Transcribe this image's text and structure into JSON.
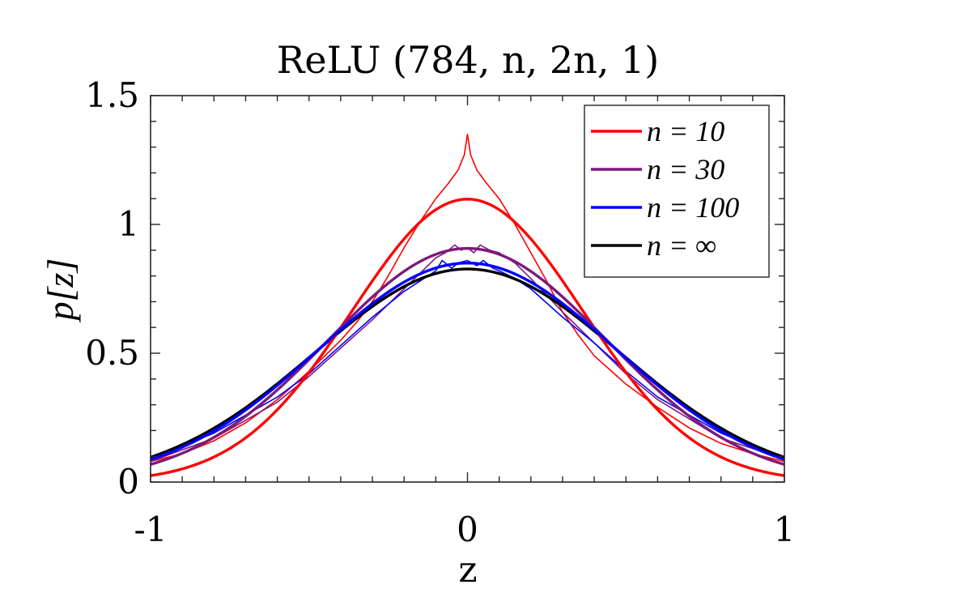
{
  "chart_data": {
    "type": "line",
    "title": "ReLU (784, n, 2n, 1)",
    "xlabel": "z",
    "ylabel": "p[z]",
    "xlim": [
      -1,
      1
    ],
    "ylim": [
      0,
      1.5
    ],
    "xticks": [
      -1,
      0,
      1
    ],
    "xtick_labels": [
      "-1",
      "0",
      "1"
    ],
    "yticks": [
      0,
      0.5,
      1,
      1.5
    ],
    "ytick_labels": [
      "0",
      "0.5",
      "1",
      "1.5"
    ],
    "minor_tick_step_x": 0.1,
    "minor_tick_step_y": 0.1,
    "grid": false,
    "legend_position": "top-right",
    "series": [
      {
        "name": "n = 10",
        "legend_label": "n = 10",
        "color": "#ff0000",
        "kind": "theory",
        "peak": 1.098
      },
      {
        "name": "n = 30",
        "legend_label": "n = 30",
        "color": "#7b1a7b",
        "kind": "theory",
        "peak": 0.907
      },
      {
        "name": "n = 100",
        "legend_label": "n = 100",
        "color": "#0000ff",
        "kind": "theory",
        "peak": 0.85
      },
      {
        "name": "n = ∞",
        "legend_label": "n = ∞",
        "color": "#000000",
        "kind": "theory",
        "peak": 0.827
      }
    ],
    "empirical_series": [
      {
        "name": "n = 10 (empirical)",
        "color": "#ff0000",
        "x": [
          -1.0,
          -0.9,
          -0.8,
          -0.7,
          -0.6,
          -0.5,
          -0.4,
          -0.35,
          -0.3,
          -0.25,
          -0.2,
          -0.15,
          -0.1,
          -0.06,
          -0.03,
          -0.01,
          0.0,
          0.01,
          0.03,
          0.06,
          0.1,
          0.15,
          0.2,
          0.25,
          0.3,
          0.35,
          0.4,
          0.5,
          0.6,
          0.7,
          0.8,
          0.9,
          1.0
        ],
        "y": [
          0.08,
          0.11,
          0.16,
          0.23,
          0.32,
          0.43,
          0.55,
          0.62,
          0.7,
          0.8,
          0.91,
          1.01,
          1.1,
          1.16,
          1.21,
          1.27,
          1.35,
          1.27,
          1.21,
          1.16,
          1.1,
          1.0,
          0.89,
          0.78,
          0.66,
          0.57,
          0.49,
          0.38,
          0.29,
          0.21,
          0.15,
          0.11,
          0.08
        ]
      },
      {
        "name": "n = 30 (empirical)",
        "color": "#7b1a7b",
        "x": [
          -1.0,
          -0.8,
          -0.6,
          -0.5,
          -0.4,
          -0.3,
          -0.2,
          -0.15,
          -0.1,
          -0.07,
          -0.04,
          -0.02,
          0.0,
          0.02,
          0.04,
          0.07,
          0.1,
          0.15,
          0.2,
          0.3,
          0.4,
          0.5,
          0.6,
          0.8,
          1.0
        ],
        "y": [
          0.08,
          0.17,
          0.31,
          0.41,
          0.52,
          0.63,
          0.75,
          0.81,
          0.87,
          0.89,
          0.92,
          0.9,
          0.91,
          0.89,
          0.92,
          0.9,
          0.89,
          0.85,
          0.79,
          0.66,
          0.54,
          0.42,
          0.32,
          0.17,
          0.09
        ]
      },
      {
        "name": "n = 100 (empirical)",
        "color": "#0000ff",
        "x": [
          -1.0,
          -0.8,
          -0.6,
          -0.5,
          -0.4,
          -0.3,
          -0.2,
          -0.15,
          -0.1,
          -0.08,
          -0.05,
          -0.03,
          0.0,
          0.03,
          0.05,
          0.08,
          0.1,
          0.15,
          0.2,
          0.3,
          0.4,
          0.5,
          0.6,
          0.8,
          1.0
        ],
        "y": [
          0.09,
          0.19,
          0.33,
          0.42,
          0.53,
          0.64,
          0.74,
          0.78,
          0.82,
          0.86,
          0.83,
          0.85,
          0.86,
          0.84,
          0.86,
          0.83,
          0.82,
          0.79,
          0.75,
          0.64,
          0.54,
          0.43,
          0.33,
          0.19,
          0.09
        ]
      }
    ]
  }
}
